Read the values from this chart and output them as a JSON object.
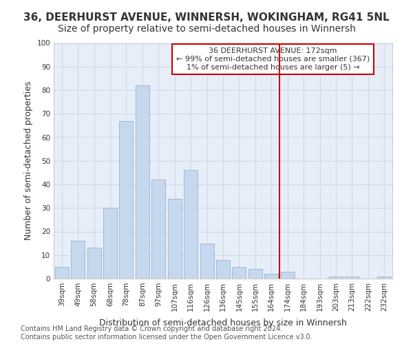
{
  "title": "36, DEERHURST AVENUE, WINNERSH, WOKINGHAM, RG41 5NL",
  "subtitle": "Size of property relative to semi-detached houses in Winnersh",
  "xlabel": "Distribution of semi-detached houses by size in Winnersh",
  "ylabel": "Number of semi-detached properties",
  "categories": [
    "39sqm",
    "49sqm",
    "58sqm",
    "68sqm",
    "78sqm",
    "87sqm",
    "97sqm",
    "107sqm",
    "116sqm",
    "126sqm",
    "136sqm",
    "145sqm",
    "155sqm",
    "164sqm",
    "174sqm",
    "184sqm",
    "193sqm",
    "203sqm",
    "213sqm",
    "222sqm",
    "232sqm"
  ],
  "values": [
    5,
    16,
    13,
    30,
    67,
    82,
    42,
    34,
    46,
    15,
    8,
    5,
    4,
    2,
    3,
    0,
    0,
    1,
    1,
    0,
    1
  ],
  "bar_color": "#c5d8ed",
  "bar_edgecolor": "#a0b8d8",
  "grid_color": "#d0d8e8",
  "background_color": "#e8eef8",
  "vline_color": "#cc0000",
  "annotation_line1": "36 DEERHURST AVENUE: 172sqm",
  "annotation_line2": "← 99% of semi-detached houses are smaller (367)",
  "annotation_line3": "1% of semi-detached houses are larger (5) →",
  "annotation_box_edgecolor": "#cc0000",
  "annotation_box_facecolor": "#ffffff",
  "footer_text": "Contains HM Land Registry data © Crown copyright and database right 2024.\nContains public sector information licensed under the Open Government Licence v3.0.",
  "ylim": [
    0,
    100
  ],
  "title_fontsize": 11,
  "subtitle_fontsize": 10,
  "xlabel_fontsize": 9,
  "ylabel_fontsize": 9,
  "tick_fontsize": 7.5,
  "annotation_fontsize": 8,
  "footer_fontsize": 7
}
